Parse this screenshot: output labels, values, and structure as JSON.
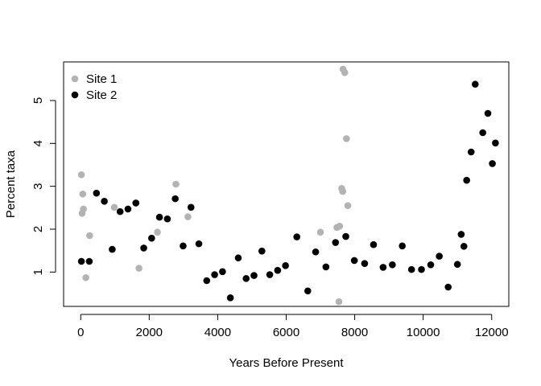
{
  "chart_data": {
    "type": "scatter",
    "xlabel": "Years Before Present",
    "ylabel": "Percent taxa",
    "xlim": [
      -500,
      12500
    ],
    "ylim": [
      0.2,
      5.9
    ],
    "x_ticks": [
      0,
      2000,
      4000,
      6000,
      8000,
      10000,
      12000
    ],
    "y_ticks": [
      1,
      2,
      3,
      4,
      5
    ],
    "legend_position": "top-left",
    "grid": false,
    "series": [
      {
        "name": "Site 1",
        "color": "#b3b3b3",
        "points": [
          [
            20,
            3.27
          ],
          [
            60,
            2.82
          ],
          [
            80,
            2.47
          ],
          [
            40,
            2.37
          ],
          [
            150,
            0.87
          ],
          [
            260,
            1.85
          ],
          [
            980,
            2.51
          ],
          [
            1700,
            1.09
          ],
          [
            2240,
            1.93
          ],
          [
            2780,
            3.05
          ],
          [
            3130,
            2.29
          ],
          [
            7000,
            1.93
          ],
          [
            7480,
            2.04
          ],
          [
            7560,
            2.07
          ],
          [
            7540,
            0.31
          ],
          [
            7620,
            2.95
          ],
          [
            7650,
            2.88
          ],
          [
            7660,
            5.73
          ],
          [
            7710,
            5.65
          ],
          [
            7760,
            4.11
          ],
          [
            7800,
            2.55
          ]
        ]
      },
      {
        "name": "Site 2",
        "color": "#000000",
        "points": [
          [
            20,
            1.25
          ],
          [
            250,
            1.25
          ],
          [
            460,
            2.84
          ],
          [
            690,
            2.65
          ],
          [
            920,
            1.53
          ],
          [
            1150,
            2.41
          ],
          [
            1380,
            2.47
          ],
          [
            1610,
            2.61
          ],
          [
            1840,
            1.56
          ],
          [
            2070,
            1.79
          ],
          [
            2300,
            2.28
          ],
          [
            2530,
            2.24
          ],
          [
            2760,
            2.71
          ],
          [
            2990,
            1.61
          ],
          [
            3220,
            2.51
          ],
          [
            3450,
            1.66
          ],
          [
            3680,
            0.8
          ],
          [
            3910,
            0.94
          ],
          [
            4140,
            1.01
          ],
          [
            4370,
            0.4
          ],
          [
            4600,
            1.33
          ],
          [
            4830,
            0.85
          ],
          [
            5060,
            0.92
          ],
          [
            5290,
            1.49
          ],
          [
            5520,
            0.94
          ],
          [
            5750,
            1.04
          ],
          [
            5980,
            1.15
          ],
          [
            6310,
            1.82
          ],
          [
            6630,
            0.56
          ],
          [
            6860,
            1.47
          ],
          [
            7160,
            1.12
          ],
          [
            7440,
            1.69
          ],
          [
            7740,
            1.83
          ],
          [
            7990,
            1.27
          ],
          [
            8290,
            1.2
          ],
          [
            8550,
            1.64
          ],
          [
            8830,
            1.11
          ],
          [
            9100,
            1.17
          ],
          [
            9390,
            1.61
          ],
          [
            9660,
            1.06
          ],
          [
            9950,
            1.06
          ],
          [
            10220,
            1.17
          ],
          [
            10470,
            1.37
          ],
          [
            10730,
            0.65
          ],
          [
            11000,
            1.18
          ],
          [
            11110,
            1.88
          ],
          [
            11190,
            1.6
          ],
          [
            11270,
            3.14
          ],
          [
            11400,
            3.8
          ],
          [
            11520,
            5.38
          ],
          [
            11740,
            4.25
          ],
          [
            11890,
            4.7
          ],
          [
            12020,
            3.53
          ],
          [
            12110,
            4.01
          ]
        ]
      }
    ]
  }
}
